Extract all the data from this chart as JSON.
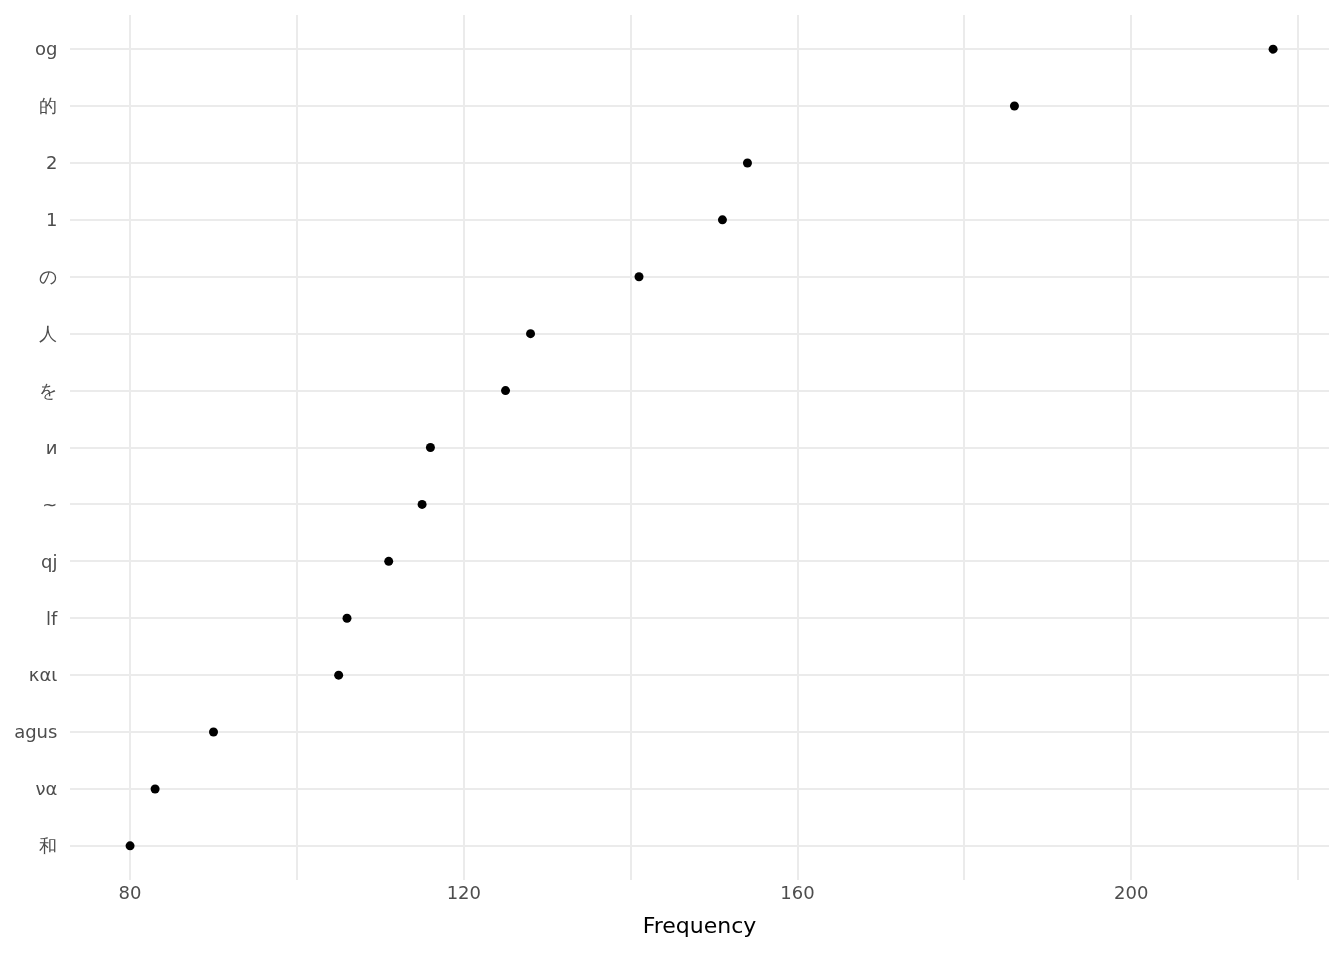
{
  "chart_data": {
    "type": "scatter",
    "orientation": "horizontal",
    "xlabel": "Frequency",
    "categories": [
      "og",
      "的",
      "2",
      "1",
      "の",
      "人",
      "を",
      "и",
      "~",
      "qj",
      "lf",
      "και",
      "agus",
      "να",
      "和"
    ],
    "values": [
      217,
      186,
      154,
      151,
      141,
      128,
      125,
      116,
      115,
      111,
      106,
      105,
      90,
      83,
      80
    ],
    "color": "#000000",
    "marker": "circle",
    "grid": true,
    "xlim": [
      72.8,
      223.7
    ],
    "xticks": [
      80,
      {
        "value": 100,
        "label": null
      },
      120,
      {
        "value": 140,
        "label": null
      },
      160,
      {
        "value": 180,
        "label": null
      },
      200,
      {
        "value": 220,
        "label": null
      }
    ]
  }
}
